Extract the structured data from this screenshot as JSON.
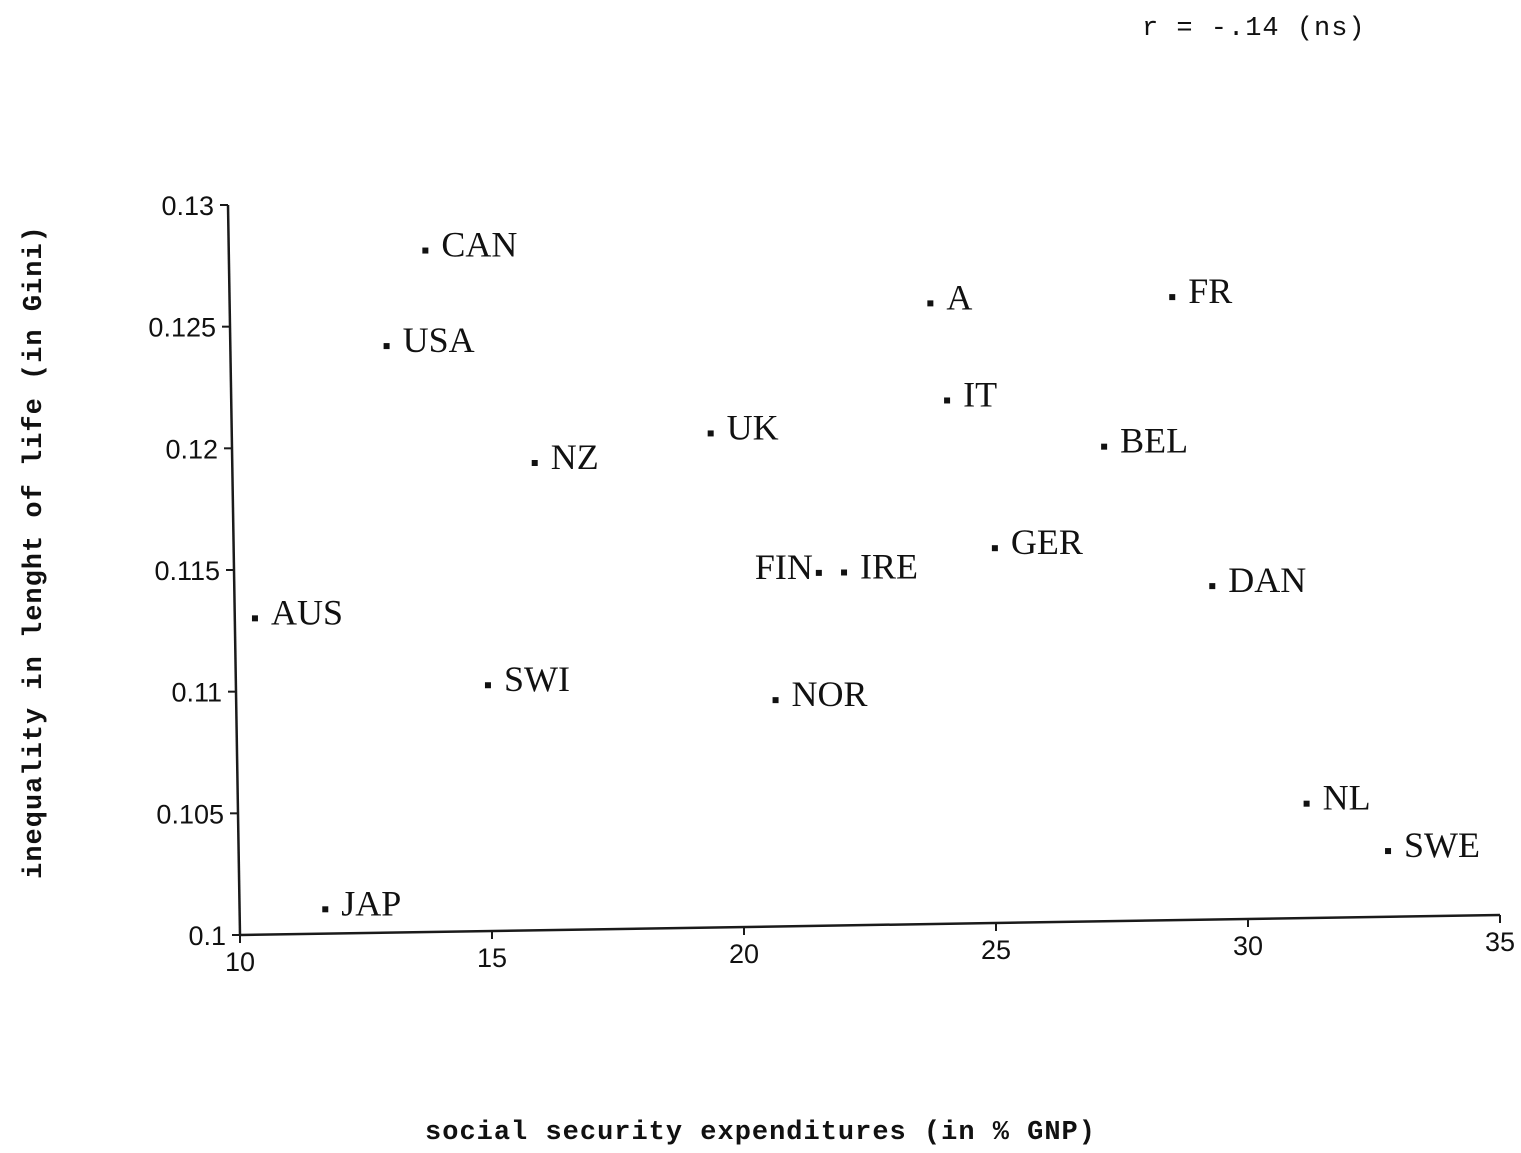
{
  "chart_data": {
    "type": "scatter",
    "annotation": "r = -.14 (ns)",
    "xlabel": "social security expenditures (in % GNP)",
    "ylabel": "inequality in lenght of life (in Gini)",
    "xlim": [
      10,
      35
    ],
    "ylim": [
      0.1,
      0.13
    ],
    "xticks": [
      "10",
      "15",
      "20",
      "25",
      "30",
      "35"
    ],
    "yticks": [
      "0.1",
      "0.105",
      "0.11",
      "0.115",
      "0.12",
      "0.125",
      "0.13"
    ],
    "grid": false,
    "points": [
      {
        "label": "CAN",
        "x": 13.9,
        "y": 0.128
      },
      {
        "label": "USA",
        "x": 13.1,
        "y": 0.1241
      },
      {
        "label": "A",
        "x": 23.9,
        "y": 0.1255
      },
      {
        "label": "FR",
        "x": 28.7,
        "y": 0.1256
      },
      {
        "label": "IT",
        "x": 24.2,
        "y": 0.1215
      },
      {
        "label": "NZ",
        "x": 16.0,
        "y": 0.1192
      },
      {
        "label": "UK",
        "x": 19.5,
        "y": 0.1203
      },
      {
        "label": "BEL",
        "x": 27.3,
        "y": 0.1195
      },
      {
        "label": "GER",
        "x": 25.1,
        "y": 0.1154
      },
      {
        "label": "FIN",
        "x": 21.6,
        "y": 0.1145
      },
      {
        "label": "IRE",
        "x": 22.1,
        "y": 0.1145
      },
      {
        "label": "DAN",
        "x": 29.4,
        "y": 0.1137
      },
      {
        "label": "AUS",
        "x": 10.4,
        "y": 0.113
      },
      {
        "label": "SWI",
        "x": 15.0,
        "y": 0.1101
      },
      {
        "label": "NOR",
        "x": 20.7,
        "y": 0.1093
      },
      {
        "label": "NL",
        "x": 31.2,
        "y": 0.1047
      },
      {
        "label": "SWE",
        "x": 32.8,
        "y": 0.1027
      },
      {
        "label": "JAP",
        "x": 11.7,
        "y": 0.101
      }
    ]
  }
}
